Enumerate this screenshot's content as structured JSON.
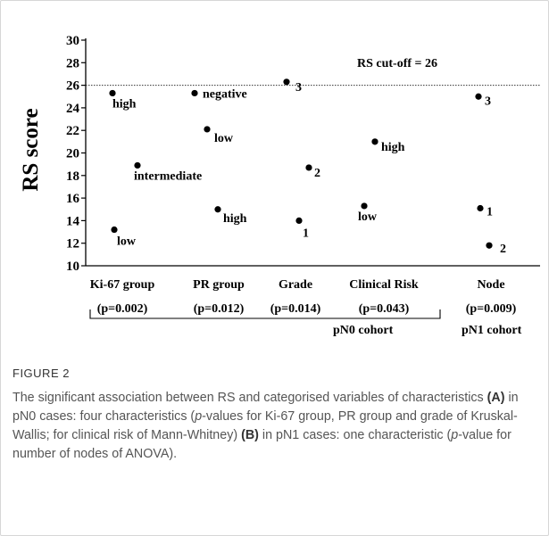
{
  "chart_data": {
    "type": "scatter",
    "ylabel": "RS score",
    "ylim": [
      10,
      30
    ],
    "yticks": [
      10,
      12,
      14,
      16,
      18,
      20,
      22,
      24,
      26,
      28,
      30
    ],
    "cutoff": {
      "value": 26,
      "label": "RS cut-off = 26"
    },
    "groups": [
      {
        "name": "Ki-67 group",
        "pvalue": "(p=0.002)",
        "points": [
          {
            "label": "low",
            "y": 13.2
          },
          {
            "label": "intermediate",
            "y": 18.9
          },
          {
            "label": "high",
            "y": 25.3
          }
        ]
      },
      {
        "name": "PR group",
        "pvalue": "(p=0.012)",
        "points": [
          {
            "label": "negative",
            "y": 25.3
          },
          {
            "label": "low",
            "y": 22.1
          },
          {
            "label": "high",
            "y": 15.0
          }
        ]
      },
      {
        "name": "Grade",
        "pvalue": "(p=0.014)",
        "points": [
          {
            "label": "3",
            "y": 26.3
          },
          {
            "label": "2",
            "y": 18.7
          },
          {
            "label": "1",
            "y": 14.0
          }
        ]
      },
      {
        "name": "Clinical Risk",
        "pvalue": "(p=0.043)",
        "points": [
          {
            "label": "high",
            "y": 21.0
          },
          {
            "label": "low",
            "y": 15.3
          }
        ]
      },
      {
        "name": "Node",
        "pvalue": "(p=0.009)",
        "points": [
          {
            "label": "3",
            "y": 25.0
          },
          {
            "label": "1",
            "y": 15.1
          },
          {
            "label": "2",
            "y": 11.8
          }
        ]
      }
    ],
    "cohorts": [
      "pN0 cohort",
      "pN1 cohort"
    ],
    "grid": false
  },
  "caption": {
    "title": "FIGURE 2",
    "text_a": "The significant association between RS and categorised variables of characteristics ",
    "marker_a": "(A)",
    "text_b": " in pN0 cases: four characteristics (",
    "p1": "p",
    "text_c": "-values for Ki-67 group, PR group and grade of Kruskal-Wallis; for clinical risk of Mann-Whitney) ",
    "marker_b": "(B)",
    "text_d": " in pN1 cases: one characteristic (",
    "p2": "p",
    "text_e": "-value for number of nodes of ANOVA)."
  }
}
